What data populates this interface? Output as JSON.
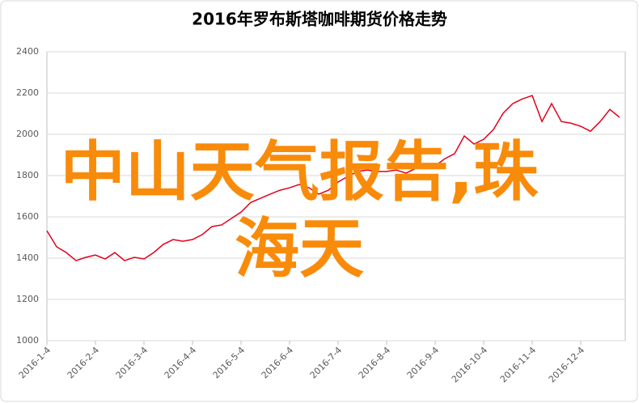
{
  "chart_data": {
    "type": "line",
    "title": "2016年罗布斯塔咖啡期货价格走势",
    "annotation": "中山天气报告,珠海天",
    "categories": [
      "2016-1-4",
      null,
      null,
      null,
      null,
      "2016-2-4",
      null,
      null,
      null,
      null,
      "2016-3-4",
      null,
      null,
      null,
      null,
      "2016-4-4",
      null,
      null,
      null,
      null,
      "2016-5-4",
      null,
      null,
      null,
      null,
      "2016-6-4",
      null,
      null,
      null,
      null,
      "2016-7-4",
      null,
      null,
      null,
      null,
      "2016-8-4",
      null,
      null,
      null,
      null,
      "2016-9-4",
      null,
      null,
      null,
      null,
      "2016-10-4",
      null,
      null,
      null,
      null,
      "2016-11-4",
      null,
      null,
      null,
      null,
      "2016-12-4",
      null,
      null,
      null,
      null
    ],
    "values": [
      1533,
      1455,
      1427,
      1388,
      1404,
      1415,
      1396,
      1427,
      1388,
      1404,
      1396,
      1427,
      1467,
      1490,
      1482,
      1490,
      1514,
      1553,
      1561,
      1592,
      1623,
      1670,
      1690,
      1710,
      1729,
      1741,
      1757,
      1741,
      1710,
      1729,
      1769,
      1796,
      1820,
      1827,
      1820,
      1820,
      1827,
      1812,
      1835,
      1847,
      1847,
      1882,
      1906,
      1992,
      1953,
      1976,
      2023,
      2102,
      2149,
      2172,
      2188,
      2062,
      2149,
      2062,
      2054,
      2039,
      2015,
      2062,
      2121,
      2082
    ],
    "color": "#e3001b",
    "ylim": [
      1000,
      2400
    ],
    "yticks": [
      1000,
      1200,
      1400,
      1600,
      1800,
      2000,
      2200,
      2400
    ],
    "grid": true
  }
}
